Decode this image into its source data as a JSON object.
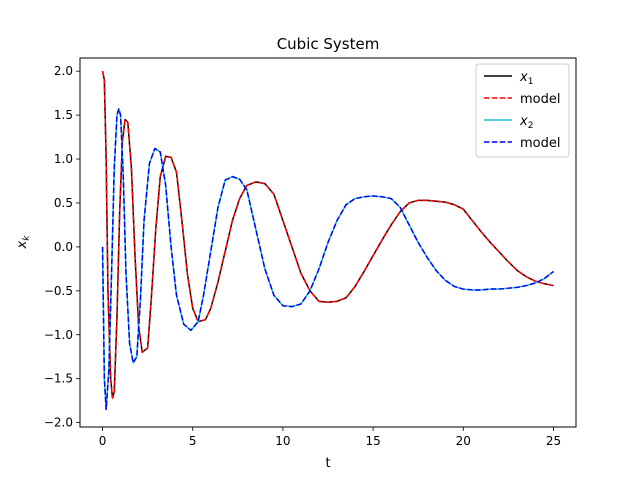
{
  "chart_data": {
    "type": "line",
    "title": "Cubic System",
    "xlabel": "t",
    "ylabel_main": "x",
    "ylabel_sub": "k",
    "xlim": [
      -1.25,
      26.25
    ],
    "ylim": [
      -2.05,
      2.15
    ],
    "xticks": [
      0,
      5,
      10,
      15,
      20,
      25
    ],
    "xtick_labels": [
      "0",
      "5",
      "10",
      "15",
      "20",
      "25"
    ],
    "yticks": [
      -2.0,
      -1.5,
      -1.0,
      -0.5,
      0.0,
      0.5,
      1.0,
      1.5,
      2.0
    ],
    "ytick_labels": [
      "−2.0",
      "−1.5",
      "−1.0",
      "−0.5",
      "0.0",
      "0.5",
      "1.0",
      "1.5",
      "2.0"
    ],
    "grid": false,
    "legend_position": "top-right",
    "series": [
      {
        "name": "x1",
        "label_main": "x",
        "label_sub": "1",
        "color": "#000000",
        "dash": "solid",
        "points": [
          [
            0.0,
            2.0
          ],
          [
            0.1,
            1.9
          ],
          [
            0.2,
            1.0
          ],
          [
            0.3,
            -0.5
          ],
          [
            0.45,
            -1.5
          ],
          [
            0.55,
            -1.72
          ],
          [
            0.65,
            -1.65
          ],
          [
            0.8,
            -0.8
          ],
          [
            0.95,
            0.4
          ],
          [
            1.1,
            1.2
          ],
          [
            1.25,
            1.45
          ],
          [
            1.4,
            1.42
          ],
          [
            1.6,
            0.9
          ],
          [
            1.8,
            -0.1
          ],
          [
            2.0,
            -0.9
          ],
          [
            2.2,
            -1.2
          ],
          [
            2.5,
            -1.15
          ],
          [
            2.7,
            -0.6
          ],
          [
            2.95,
            0.2
          ],
          [
            3.2,
            0.8
          ],
          [
            3.5,
            1.03
          ],
          [
            3.8,
            1.02
          ],
          [
            4.1,
            0.85
          ],
          [
            4.4,
            0.3
          ],
          [
            4.7,
            -0.3
          ],
          [
            5.0,
            -0.7
          ],
          [
            5.3,
            -0.85
          ],
          [
            5.7,
            -0.83
          ],
          [
            6.0,
            -0.7
          ],
          [
            6.4,
            -0.4
          ],
          [
            6.8,
            -0.05
          ],
          [
            7.2,
            0.3
          ],
          [
            7.6,
            0.55
          ],
          [
            8.0,
            0.7
          ],
          [
            8.5,
            0.74
          ],
          [
            9.0,
            0.72
          ],
          [
            9.5,
            0.6
          ],
          [
            10.0,
            0.3
          ],
          [
            10.5,
            0.0
          ],
          [
            11.0,
            -0.3
          ],
          [
            11.5,
            -0.5
          ],
          [
            12.0,
            -0.62
          ],
          [
            12.5,
            -0.63
          ],
          [
            13.0,
            -0.62
          ],
          [
            13.5,
            -0.58
          ],
          [
            14.0,
            -0.45
          ],
          [
            14.5,
            -0.28
          ],
          [
            15.0,
            -0.1
          ],
          [
            15.5,
            0.08
          ],
          [
            16.0,
            0.25
          ],
          [
            16.5,
            0.4
          ],
          [
            17.0,
            0.5
          ],
          [
            17.5,
            0.53
          ],
          [
            18.0,
            0.53
          ],
          [
            18.5,
            0.52
          ],
          [
            19.0,
            0.51
          ],
          [
            19.5,
            0.48
          ],
          [
            20.0,
            0.43
          ],
          [
            20.5,
            0.3
          ],
          [
            21.0,
            0.17
          ],
          [
            21.5,
            0.05
          ],
          [
            22.0,
            -0.06
          ],
          [
            22.5,
            -0.17
          ],
          [
            23.0,
            -0.27
          ],
          [
            23.5,
            -0.34
          ],
          [
            24.0,
            -0.39
          ],
          [
            24.5,
            -0.42
          ],
          [
            25.0,
            -0.44
          ]
        ]
      },
      {
        "name": "model",
        "label_main": "model",
        "label_sub": "",
        "color": "#ff0000",
        "dash": "dashed",
        "points": [
          [
            0.0,
            2.0
          ],
          [
            0.1,
            1.9
          ],
          [
            0.2,
            1.0
          ],
          [
            0.3,
            -0.5
          ],
          [
            0.45,
            -1.5
          ],
          [
            0.55,
            -1.72
          ],
          [
            0.65,
            -1.65
          ],
          [
            0.8,
            -0.8
          ],
          [
            0.95,
            0.4
          ],
          [
            1.1,
            1.2
          ],
          [
            1.25,
            1.45
          ],
          [
            1.4,
            1.42
          ],
          [
            1.6,
            0.9
          ],
          [
            1.8,
            -0.1
          ],
          [
            2.0,
            -0.9
          ],
          [
            2.2,
            -1.2
          ],
          [
            2.5,
            -1.15
          ],
          [
            2.7,
            -0.6
          ],
          [
            2.95,
            0.2
          ],
          [
            3.2,
            0.8
          ],
          [
            3.5,
            1.03
          ],
          [
            3.8,
            1.02
          ],
          [
            4.1,
            0.85
          ],
          [
            4.4,
            0.3
          ],
          [
            4.7,
            -0.3
          ],
          [
            5.0,
            -0.7
          ],
          [
            5.3,
            -0.85
          ],
          [
            5.7,
            -0.83
          ],
          [
            6.0,
            -0.7
          ],
          [
            6.4,
            -0.4
          ],
          [
            6.8,
            -0.05
          ],
          [
            7.2,
            0.3
          ],
          [
            7.6,
            0.55
          ],
          [
            8.0,
            0.7
          ],
          [
            8.5,
            0.74
          ],
          [
            9.0,
            0.72
          ],
          [
            9.5,
            0.6
          ],
          [
            10.0,
            0.3
          ],
          [
            10.5,
            0.0
          ],
          [
            11.0,
            -0.3
          ],
          [
            11.5,
            -0.5
          ],
          [
            12.0,
            -0.62
          ],
          [
            12.5,
            -0.63
          ],
          [
            13.0,
            -0.62
          ],
          [
            13.5,
            -0.58
          ],
          [
            14.0,
            -0.45
          ],
          [
            14.5,
            -0.28
          ],
          [
            15.0,
            -0.1
          ],
          [
            15.5,
            0.08
          ],
          [
            16.0,
            0.25
          ],
          [
            16.5,
            0.4
          ],
          [
            17.0,
            0.5
          ],
          [
            17.5,
            0.53
          ],
          [
            18.0,
            0.53
          ],
          [
            18.5,
            0.52
          ],
          [
            19.0,
            0.51
          ],
          [
            19.5,
            0.48
          ],
          [
            20.0,
            0.43
          ],
          [
            20.5,
            0.3
          ],
          [
            21.0,
            0.17
          ],
          [
            21.5,
            0.05
          ],
          [
            22.0,
            -0.06
          ],
          [
            22.5,
            -0.17
          ],
          [
            23.0,
            -0.27
          ],
          [
            23.5,
            -0.34
          ],
          [
            24.0,
            -0.39
          ],
          [
            24.5,
            -0.42
          ],
          [
            25.0,
            -0.44
          ]
        ]
      },
      {
        "name": "x2",
        "label_main": "x",
        "label_sub": "2",
        "color": "#17becf",
        "dash": "solid",
        "points": [
          [
            0.0,
            0.0
          ],
          [
            0.1,
            -1.5
          ],
          [
            0.2,
            -1.85
          ],
          [
            0.35,
            -1.4
          ],
          [
            0.5,
            -0.3
          ],
          [
            0.65,
            0.9
          ],
          [
            0.8,
            1.5
          ],
          [
            0.9,
            1.57
          ],
          [
            1.0,
            1.5
          ],
          [
            1.15,
            0.8
          ],
          [
            1.3,
            -0.3
          ],
          [
            1.5,
            -1.1
          ],
          [
            1.7,
            -1.32
          ],
          [
            1.9,
            -1.25
          ],
          [
            2.1,
            -0.6
          ],
          [
            2.3,
            0.3
          ],
          [
            2.6,
            0.95
          ],
          [
            2.9,
            1.12
          ],
          [
            3.2,
            1.08
          ],
          [
            3.5,
            0.7
          ],
          [
            3.8,
            0.0
          ],
          [
            4.1,
            -0.55
          ],
          [
            4.5,
            -0.88
          ],
          [
            4.9,
            -0.95
          ],
          [
            5.3,
            -0.85
          ],
          [
            5.6,
            -0.55
          ],
          [
            6.0,
            -0.05
          ],
          [
            6.4,
            0.45
          ],
          [
            6.8,
            0.76
          ],
          [
            7.2,
            0.8
          ],
          [
            7.6,
            0.77
          ],
          [
            8.0,
            0.65
          ],
          [
            8.5,
            0.2
          ],
          [
            9.0,
            -0.25
          ],
          [
            9.5,
            -0.55
          ],
          [
            10.0,
            -0.67
          ],
          [
            10.5,
            -0.68
          ],
          [
            11.0,
            -0.65
          ],
          [
            11.5,
            -0.5
          ],
          [
            12.0,
            -0.25
          ],
          [
            12.5,
            0.05
          ],
          [
            13.0,
            0.3
          ],
          [
            13.5,
            0.48
          ],
          [
            14.0,
            0.55
          ],
          [
            14.5,
            0.57
          ],
          [
            15.0,
            0.58
          ],
          [
            15.5,
            0.57
          ],
          [
            16.0,
            0.55
          ],
          [
            16.5,
            0.45
          ],
          [
            17.0,
            0.25
          ],
          [
            17.5,
            0.05
          ],
          [
            18.0,
            -0.12
          ],
          [
            18.5,
            -0.27
          ],
          [
            19.0,
            -0.38
          ],
          [
            19.5,
            -0.45
          ],
          [
            20.0,
            -0.48
          ],
          [
            20.5,
            -0.49
          ],
          [
            21.0,
            -0.49
          ],
          [
            21.5,
            -0.48
          ],
          [
            22.0,
            -0.48
          ],
          [
            22.5,
            -0.47
          ],
          [
            23.0,
            -0.46
          ],
          [
            23.5,
            -0.44
          ],
          [
            24.0,
            -0.41
          ],
          [
            24.5,
            -0.36
          ],
          [
            25.0,
            -0.28
          ]
        ]
      },
      {
        "name": "model",
        "label_main": "model",
        "label_sub": "",
        "color": "#0000ff",
        "dash": "dashed",
        "points": [
          [
            0.0,
            0.0
          ],
          [
            0.1,
            -1.5
          ],
          [
            0.2,
            -1.85
          ],
          [
            0.35,
            -1.4
          ],
          [
            0.5,
            -0.3
          ],
          [
            0.65,
            0.9
          ],
          [
            0.8,
            1.5
          ],
          [
            0.9,
            1.57
          ],
          [
            1.0,
            1.5
          ],
          [
            1.15,
            0.8
          ],
          [
            1.3,
            -0.3
          ],
          [
            1.5,
            -1.1
          ],
          [
            1.7,
            -1.32
          ],
          [
            1.9,
            -1.25
          ],
          [
            2.1,
            -0.6
          ],
          [
            2.3,
            0.3
          ],
          [
            2.6,
            0.95
          ],
          [
            2.9,
            1.12
          ],
          [
            3.2,
            1.08
          ],
          [
            3.5,
            0.7
          ],
          [
            3.8,
            0.0
          ],
          [
            4.1,
            -0.55
          ],
          [
            4.5,
            -0.88
          ],
          [
            4.9,
            -0.95
          ],
          [
            5.3,
            -0.85
          ],
          [
            5.6,
            -0.55
          ],
          [
            6.0,
            -0.05
          ],
          [
            6.4,
            0.45
          ],
          [
            6.8,
            0.76
          ],
          [
            7.2,
            0.8
          ],
          [
            7.6,
            0.77
          ],
          [
            8.0,
            0.65
          ],
          [
            8.5,
            0.2
          ],
          [
            9.0,
            -0.25
          ],
          [
            9.5,
            -0.55
          ],
          [
            10.0,
            -0.67
          ],
          [
            10.5,
            -0.68
          ],
          [
            11.0,
            -0.65
          ],
          [
            11.5,
            -0.5
          ],
          [
            12.0,
            -0.25
          ],
          [
            12.5,
            0.05
          ],
          [
            13.0,
            0.3
          ],
          [
            13.5,
            0.48
          ],
          [
            14.0,
            0.55
          ],
          [
            14.5,
            0.57
          ],
          [
            15.0,
            0.58
          ],
          [
            15.5,
            0.57
          ],
          [
            16.0,
            0.55
          ],
          [
            16.5,
            0.45
          ],
          [
            17.0,
            0.25
          ],
          [
            17.5,
            0.05
          ],
          [
            18.0,
            -0.12
          ],
          [
            18.5,
            -0.27
          ],
          [
            19.0,
            -0.38
          ],
          [
            19.5,
            -0.45
          ],
          [
            20.0,
            -0.48
          ],
          [
            20.5,
            -0.49
          ],
          [
            21.0,
            -0.49
          ],
          [
            21.5,
            -0.48
          ],
          [
            22.0,
            -0.48
          ],
          [
            22.5,
            -0.47
          ],
          [
            23.0,
            -0.46
          ],
          [
            23.5,
            -0.44
          ],
          [
            24.0,
            -0.41
          ],
          [
            24.5,
            -0.36
          ],
          [
            25.0,
            -0.28
          ]
        ]
      }
    ]
  }
}
